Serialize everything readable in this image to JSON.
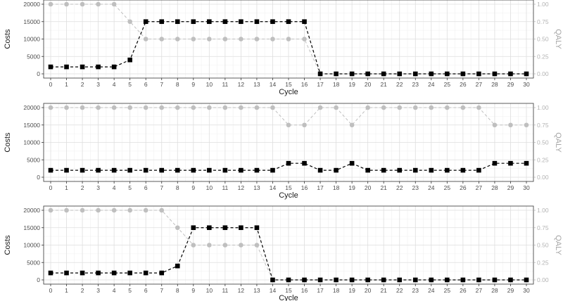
{
  "colors": {
    "costs": "#000000",
    "qaly": "#bfbfbf",
    "grid_major": "#dedede",
    "grid_minor": "#f0f0f0",
    "panel_border": "#333333"
  },
  "chart_data": [
    {
      "type": "line",
      "xlabel": "Cycle",
      "ylabel": "Costs",
      "y2label": "QALY",
      "x": [
        0,
        1,
        2,
        3,
        4,
        5,
        6,
        7,
        8,
        9,
        10,
        11,
        12,
        13,
        14,
        15,
        16,
        17,
        18,
        19,
        20,
        21,
        22,
        23,
        24,
        25,
        26,
        27,
        28,
        29,
        30
      ],
      "ylim": [
        0,
        20000
      ],
      "y2lim": [
        0,
        1
      ],
      "yticks": [
        "0",
        "5000",
        "10000",
        "15000",
        "20000"
      ],
      "y2ticks": [
        "0.00",
        "0.25",
        "0.50",
        "0.75",
        "1.00"
      ],
      "grid": true,
      "series": [
        {
          "axis": "left",
          "marker": "square",
          "values": [
            2000,
            2000,
            2000,
            2000,
            2000,
            4000,
            15000,
            15000,
            15000,
            15000,
            15000,
            15000,
            15000,
            15000,
            15000,
            15000,
            15000,
            0,
            0,
            0,
            0,
            0,
            0,
            0,
            0,
            0,
            0,
            0,
            0,
            0,
            0
          ]
        },
        {
          "axis": "right",
          "marker": "circle",
          "values": [
            1,
            1,
            1,
            1,
            1,
            0.75,
            0.5,
            0.5,
            0.5,
            0.5,
            0.5,
            0.5,
            0.5,
            0.5,
            0.5,
            0.5,
            0.5,
            0,
            0,
            0,
            0,
            0,
            0,
            0,
            0,
            0,
            0,
            0,
            0,
            0,
            0
          ]
        }
      ]
    },
    {
      "type": "line",
      "xlabel": "Cycle",
      "ylabel": "Costs",
      "y2label": "QALY",
      "x": [
        0,
        1,
        2,
        3,
        4,
        5,
        6,
        7,
        8,
        9,
        10,
        11,
        12,
        13,
        14,
        15,
        16,
        17,
        18,
        19,
        20,
        21,
        22,
        23,
        24,
        25,
        26,
        27,
        28,
        29,
        30
      ],
      "ylim": [
        0,
        20000
      ],
      "y2lim": [
        0,
        1
      ],
      "yticks": [
        "0",
        "5000",
        "10000",
        "15000",
        "20000"
      ],
      "y2ticks": [
        "0.00",
        "0.25",
        "0.50",
        "0.75",
        "1.00"
      ],
      "grid": true,
      "series": [
        {
          "axis": "left",
          "marker": "square",
          "values": [
            2000,
            2000,
            2000,
            2000,
            2000,
            2000,
            2000,
            2000,
            2000,
            2000,
            2000,
            2000,
            2000,
            2000,
            2000,
            4000,
            4000,
            2000,
            2000,
            4000,
            2000,
            2000,
            2000,
            2000,
            2000,
            2000,
            2000,
            2000,
            4000,
            4000,
            4000
          ]
        },
        {
          "axis": "right",
          "marker": "circle",
          "values": [
            1,
            1,
            1,
            1,
            1,
            1,
            1,
            1,
            1,
            1,
            1,
            1,
            1,
            1,
            1,
            0.75,
            0.75,
            1,
            1,
            0.75,
            1,
            1,
            1,
            1,
            1,
            1,
            1,
            1,
            0.75,
            0.75,
            0.75
          ]
        }
      ]
    },
    {
      "type": "line",
      "xlabel": "Cycle",
      "ylabel": "Costs",
      "y2label": "QALY",
      "x": [
        0,
        1,
        2,
        3,
        4,
        5,
        6,
        7,
        8,
        9,
        10,
        11,
        12,
        13,
        14,
        15,
        16,
        17,
        18,
        19,
        20,
        21,
        22,
        23,
        24,
        25,
        26,
        27,
        28,
        29,
        30
      ],
      "ylim": [
        0,
        20000
      ],
      "y2lim": [
        0,
        1
      ],
      "yticks": [
        "0",
        "5000",
        "10000",
        "15000",
        "20000"
      ],
      "y2ticks": [
        "0.00",
        "0.25",
        "0.50",
        "0.75",
        "1.00"
      ],
      "grid": true,
      "series": [
        {
          "axis": "left",
          "marker": "square",
          "values": [
            2000,
            2000,
            2000,
            2000,
            2000,
            2000,
            2000,
            2000,
            4000,
            15000,
            15000,
            15000,
            15000,
            15000,
            0,
            0,
            0,
            0,
            0,
            0,
            0,
            0,
            0,
            0,
            0,
            0,
            0,
            0,
            0,
            0,
            0
          ]
        },
        {
          "axis": "right",
          "marker": "circle",
          "values": [
            1,
            1,
            1,
            1,
            1,
            1,
            1,
            1,
            0.75,
            0.5,
            0.5,
            0.5,
            0.5,
            0.5,
            0,
            0,
            0,
            0,
            0,
            0,
            0,
            0,
            0,
            0,
            0,
            0,
            0,
            0,
            0,
            0,
            0
          ]
        }
      ]
    }
  ]
}
